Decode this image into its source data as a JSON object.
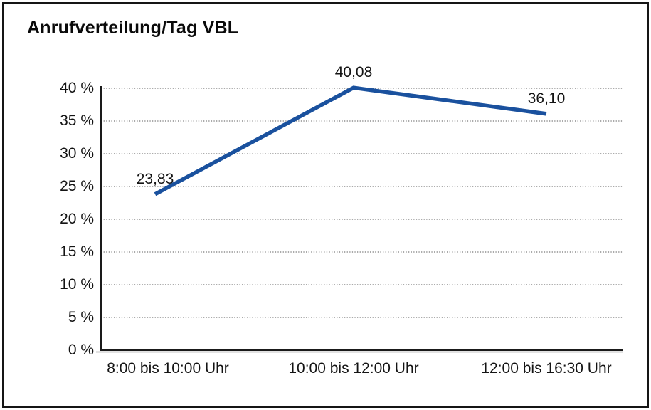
{
  "chart_data": {
    "type": "line",
    "title": "Anrufverteilung/Tag VBL",
    "categories": [
      "8:00 bis 10:00 Uhr",
      "10:00 bis 12:00 Uhr",
      "12:00 bis 16:30 Uhr"
    ],
    "values": [
      23.83,
      40.08,
      36.1
    ],
    "data_labels": [
      "23,83",
      "40,08",
      "36,10"
    ],
    "y_ticks": [
      {
        "value": 0,
        "label": "0 %"
      },
      {
        "value": 5,
        "label": "5 %"
      },
      {
        "value": 10,
        "label": "10 %"
      },
      {
        "value": 15,
        "label": "15 %"
      },
      {
        "value": 20,
        "label": "20 %"
      },
      {
        "value": 25,
        "label": "25 %"
      },
      {
        "value": 30,
        "label": "30 %"
      },
      {
        "value": 35,
        "label": "35 %"
      },
      {
        "value": 40,
        "label": "40 %"
      }
    ],
    "ylim": [
      0,
      40
    ],
    "xlabel": "",
    "ylabel": "",
    "grid": true,
    "legend": false,
    "line_color": "#1A519E",
    "axis_color": "#1a1a1a",
    "axis_shadow_color": "#8c8c8c",
    "grid_color": "#555555"
  }
}
